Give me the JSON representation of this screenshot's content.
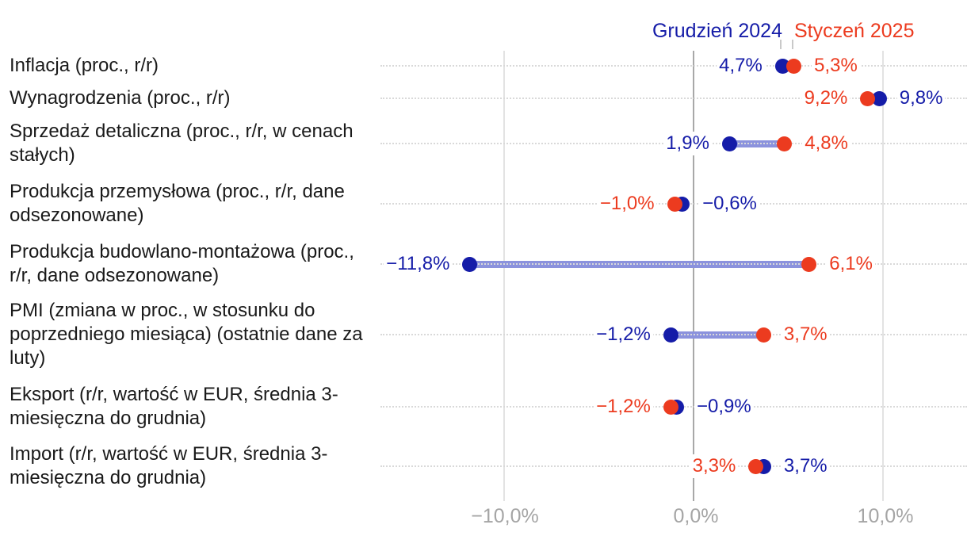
{
  "colors": {
    "series_grudzien": "#151ca8",
    "series_styczen": "#ec3b1f",
    "connector": "#8b92dd",
    "category_text": "#1a1a1a",
    "axis_text": "#a5a5a5",
    "gridline_light": "#e3e3e3",
    "gridline_zero": "#a8a8a8",
    "row_dotted": "#d9d9d9",
    "legend_tick": "#c9c9c9",
    "background": "#ffffff"
  },
  "chart_data": {
    "type": "dumbbell",
    "title": "",
    "legend_position": "top-right",
    "series": [
      {
        "name": "Grudzień 2024",
        "color": "#151ca8"
      },
      {
        "name": "Styczeń 2025",
        "color": "#ec3b1f"
      }
    ],
    "connector_color": "#8b92dd",
    "x_axis": {
      "unit": "%",
      "tick_values": [
        -10,
        0,
        10
      ],
      "tick_labels": [
        "−10,0%",
        "0,0%",
        "10,0%"
      ],
      "range": [
        -16.5,
        14.4
      ],
      "grid": "vertical solid lines at ticks, dotted horizontal line per row"
    },
    "rows": [
      {
        "category": "Inflacja (proc., r/r)",
        "values": [
          {
            "series": "Grudzień 2024",
            "value": 4.7,
            "label": "4,7%"
          },
          {
            "series": "Styczeń 2025",
            "value": 5.3,
            "label": "5,3%"
          }
        ]
      },
      {
        "category": "Wynagrodzenia (proc., r/r)",
        "values": [
          {
            "series": "Grudzień 2024",
            "value": 9.8,
            "label": "9,8%"
          },
          {
            "series": "Styczeń 2025",
            "value": 9.2,
            "label": "9,2%"
          }
        ]
      },
      {
        "category": "Sprzedaż detaliczna (proc., r/r, w cenach stałych)",
        "values": [
          {
            "series": "Grudzień 2024",
            "value": 1.9,
            "label": "1,9%"
          },
          {
            "series": "Styczeń 2025",
            "value": 4.8,
            "label": "4,8%"
          }
        ]
      },
      {
        "category": "Produkcja przemysłowa (proc., r/r, dane odsezonowane)",
        "values": [
          {
            "series": "Grudzień 2024",
            "value": -0.6,
            "label": "−0,6%"
          },
          {
            "series": "Styczeń 2025",
            "value": -1.0,
            "label": "−1,0%"
          }
        ]
      },
      {
        "category": "Produkcja budowlano-montażowa (proc., r/r, dane odsezonowane)",
        "values": [
          {
            "series": "Grudzień 2024",
            "value": -11.8,
            "label": "−11,8%"
          },
          {
            "series": "Styczeń 2025",
            "value": 6.1,
            "label": "6,1%"
          }
        ]
      },
      {
        "category": "PMI (zmiana w proc., w stosunku do poprzedniego miesiąca) (ostatnie dane za luty)",
        "values": [
          {
            "series": "Grudzień 2024",
            "value": -1.2,
            "label": "−1,2%"
          },
          {
            "series": "Styczeń 2025",
            "value": 3.7,
            "label": "3,7%"
          }
        ]
      },
      {
        "category": "Eksport (r/r, wartość w EUR, średnia 3-miesięczna do grudnia)",
        "values": [
          {
            "series": "Grudzień 2024",
            "value": -0.9,
            "label": "−0,9%"
          },
          {
            "series": "Styczeń 2025",
            "value": -1.2,
            "label": "−1,2%"
          }
        ]
      },
      {
        "category": "Import (r/r, wartość w EUR, średnia 3-miesięczna do grudnia)",
        "values": [
          {
            "series": "Grudzień 2024",
            "value": 3.7,
            "label": "3,7%"
          },
          {
            "series": "Styczeń 2025",
            "value": 3.3,
            "label": "3,3%"
          }
        ]
      }
    ]
  }
}
